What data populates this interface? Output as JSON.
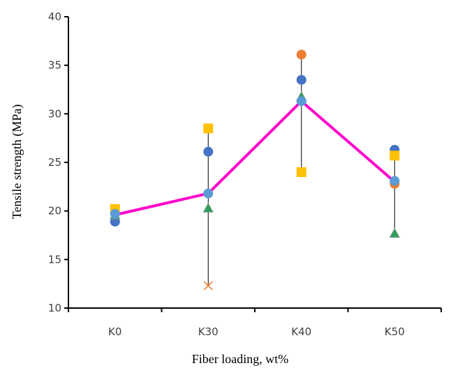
{
  "chart_data": {
    "type": "scatter",
    "xlabel": "Fiber loading, wt%",
    "ylabel": "Tensile strength (MPa)",
    "categories": [
      "K0",
      "K30",
      "K40",
      "K50"
    ],
    "ylim": [
      10,
      40
    ],
    "yticks": [
      10,
      15,
      20,
      25,
      30,
      35,
      40
    ],
    "grid": false,
    "legend": "none",
    "series": [
      {
        "marker": "circle",
        "color": "#4472C4",
        "values": [
          18.9,
          26.1,
          33.5,
          26.3
        ]
      },
      {
        "marker": "circle",
        "color": "#ED7D31",
        "values": [
          null,
          null,
          36.1,
          22.8
        ]
      },
      {
        "marker": "x",
        "color": "#ED7D31",
        "values": [
          null,
          12.3,
          null,
          null
        ]
      },
      {
        "marker": "square",
        "color": "#FFC000",
        "values": [
          20.2,
          28.5,
          24.0,
          25.7
        ]
      },
      {
        "marker": "triangle",
        "color": "#2EA05A",
        "values": [
          19.6,
          20.3,
          31.8,
          17.7
        ]
      },
      {
        "marker": "circle",
        "color": "#5B9BD5",
        "values": [
          19.7,
          21.8,
          31.3,
          23.1
        ]
      }
    ],
    "mean_line": {
      "color": "#FF00CC",
      "values": [
        19.6,
        21.8,
        31.3,
        23.0
      ]
    },
    "range_bars": {
      "color": "#000000",
      "ranges": [
        [
          18.9,
          20.2
        ],
        [
          12.3,
          28.5
        ],
        [
          24.0,
          36.1
        ],
        [
          17.7,
          26.3
        ]
      ]
    }
  }
}
